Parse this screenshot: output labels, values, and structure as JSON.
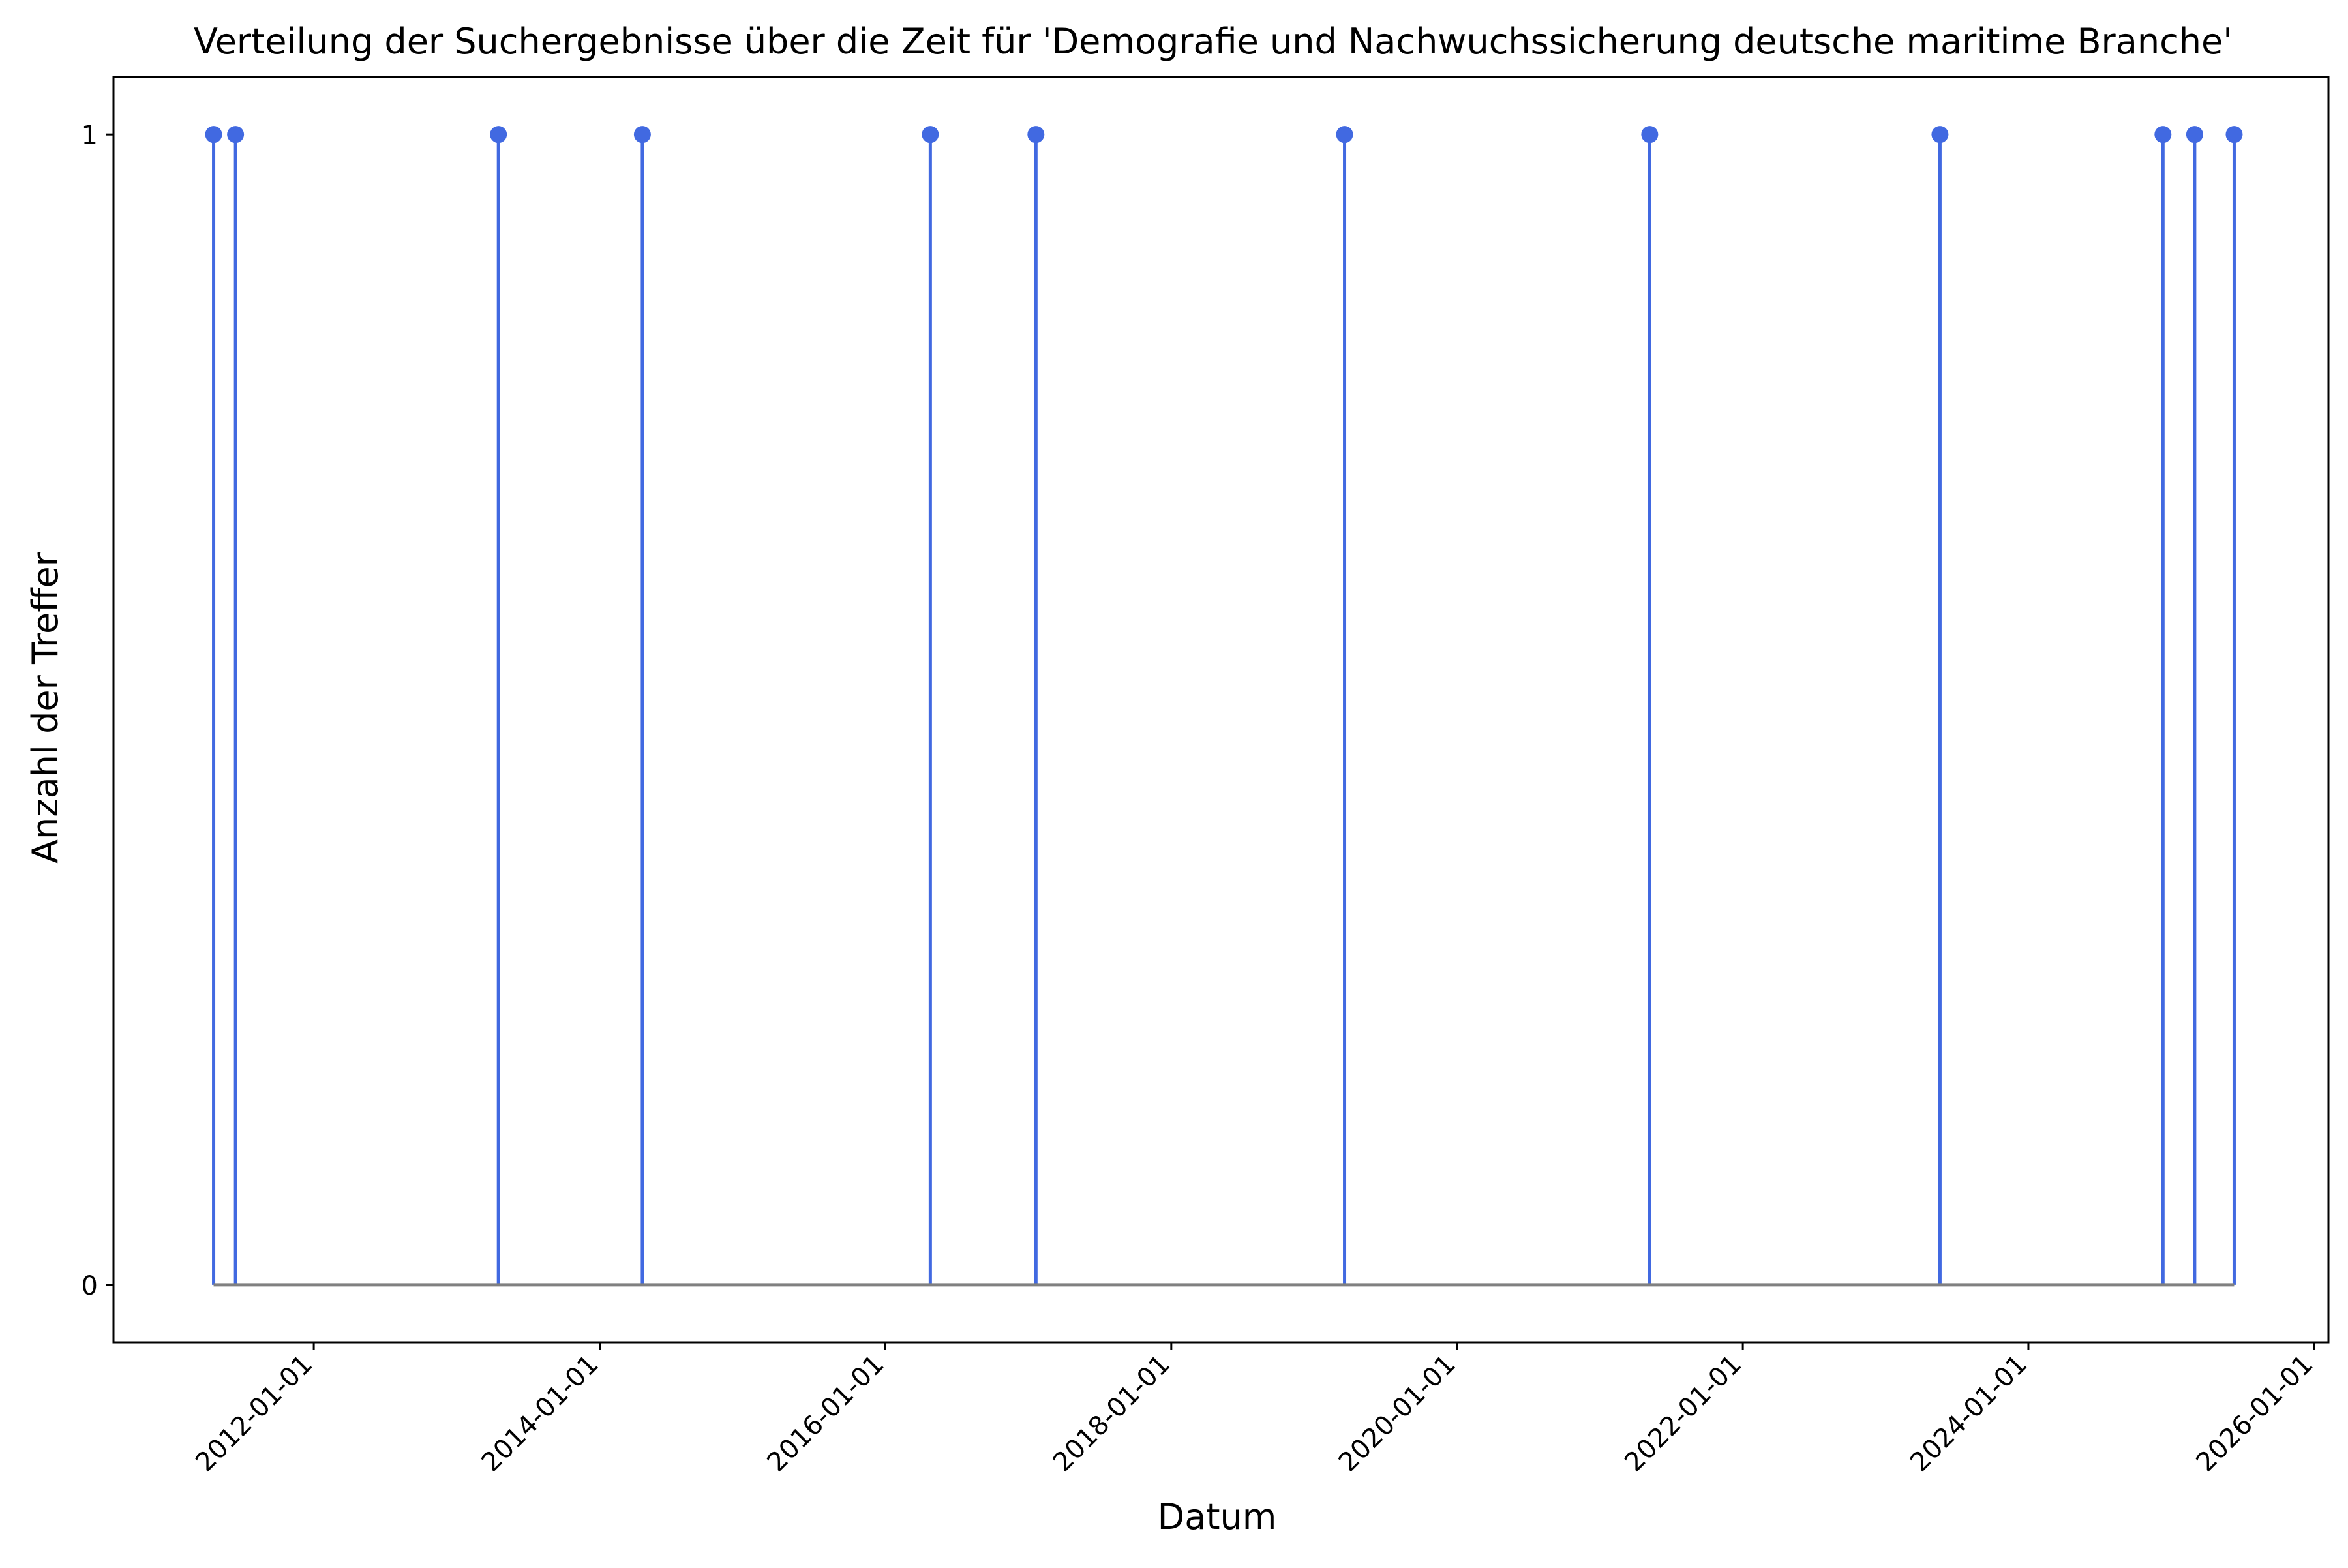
{
  "chart_data": {
    "type": "stem",
    "title": "Verteilung der Suchergebnisse über die Zeit für 'Demografie und Nachwuchssicherung deutsche maritime Branche'",
    "xlabel": "Datum",
    "ylabel": "Anzahl der Treffer",
    "x_axis": "date",
    "xlim": [
      "2010-08-07",
      "2026-02-06"
    ],
    "ylim": [
      -0.05,
      1.05
    ],
    "xticks": [
      "2012-01-01",
      "2014-01-01",
      "2016-01-01",
      "2018-01-01",
      "2020-01-01",
      "2022-01-01",
      "2024-01-01",
      "2026-01-01"
    ],
    "yticks": [
      0,
      1
    ],
    "baseline": 0,
    "grid": false,
    "legend": "none",
    "colors": {
      "stem": "#4169E1",
      "marker": "#4169E1",
      "baseline": "#808080"
    },
    "series": [
      {
        "x": [
          "2011-04-20",
          "2011-06-15",
          "2013-04-17",
          "2014-04-20",
          "2016-04-25",
          "2017-01-20",
          "2019-03-20",
          "2021-05-08",
          "2023-05-20",
          "2024-12-10",
          "2025-03-01",
          "2025-06-10"
        ],
        "values": [
          1,
          1,
          1,
          1,
          1,
          1,
          1,
          1,
          1,
          1,
          1,
          1
        ]
      }
    ]
  }
}
